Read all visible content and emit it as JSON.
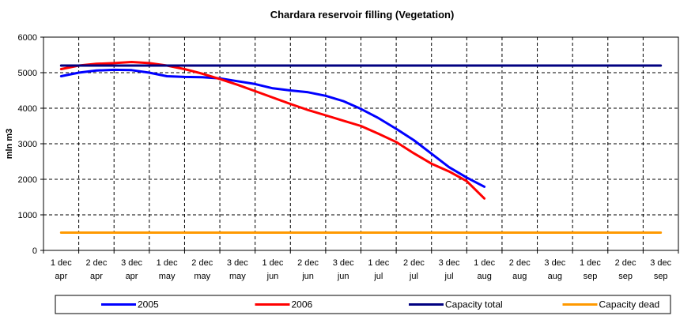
{
  "chart_data": {
    "type": "line",
    "title": "Chardara reservoir filling  (Vegetation)",
    "xlabel": "",
    "ylabel": "mln m3",
    "ylim": [
      0,
      6000
    ],
    "yticks": [
      0,
      1000,
      2000,
      3000,
      4000,
      5000,
      6000
    ],
    "categories": [
      [
        "1 dec",
        "apr"
      ],
      [
        "2 dec",
        "apr"
      ],
      [
        "3 dec",
        "apr"
      ],
      [
        "1 dec",
        "may"
      ],
      [
        "2 dec",
        "may"
      ],
      [
        "3 dec",
        "may"
      ],
      [
        "1 dec",
        "jun"
      ],
      [
        "2 dec",
        "jun"
      ],
      [
        "3 dec",
        "jun"
      ],
      [
        "1 dec",
        "jul"
      ],
      [
        "2 dec",
        "jul"
      ],
      [
        "3 dec",
        "jul"
      ],
      [
        "1 dec",
        "aug"
      ],
      [
        "2 dec",
        "aug"
      ],
      [
        "3 dec",
        "aug"
      ],
      [
        "1 dec",
        "sep"
      ],
      [
        "2 dec",
        "sep"
      ],
      [
        "3 dec",
        "sep"
      ]
    ],
    "grid": true,
    "legend_position": "bottom",
    "series": [
      {
        "name": "2005",
        "color": "#0000ff",
        "points": [
          [
            0,
            4900
          ],
          [
            0.5,
            5000
          ],
          [
            1,
            5060
          ],
          [
            1.5,
            5080
          ],
          [
            2,
            5070
          ],
          [
            2.5,
            5000
          ],
          [
            3,
            4900
          ],
          [
            3.5,
            4880
          ],
          [
            4,
            4870
          ],
          [
            4.5,
            4840
          ],
          [
            5,
            4760
          ],
          [
            5.5,
            4680
          ],
          [
            6,
            4560
          ],
          [
            6.5,
            4500
          ],
          [
            7,
            4450
          ],
          [
            7.5,
            4350
          ],
          [
            8,
            4200
          ],
          [
            8.5,
            3980
          ],
          [
            9,
            3720
          ],
          [
            9.5,
            3420
          ],
          [
            10,
            3100
          ],
          [
            10.5,
            2720
          ],
          [
            11,
            2340
          ],
          [
            11.5,
            2050
          ],
          [
            12,
            1790
          ]
        ]
      },
      {
        "name": "2006",
        "color": "#ff0000",
        "points": [
          [
            0,
            5100
          ],
          [
            0.5,
            5200
          ],
          [
            1,
            5250
          ],
          [
            1.5,
            5270
          ],
          [
            2,
            5300
          ],
          [
            2.5,
            5270
          ],
          [
            3,
            5200
          ],
          [
            3.5,
            5100
          ],
          [
            4,
            4970
          ],
          [
            4.5,
            4820
          ],
          [
            5,
            4660
          ],
          [
            5.5,
            4480
          ],
          [
            6,
            4300
          ],
          [
            6.5,
            4120
          ],
          [
            7,
            3950
          ],
          [
            7.5,
            3800
          ],
          [
            8,
            3650
          ],
          [
            8.5,
            3500
          ],
          [
            9,
            3280
          ],
          [
            9.5,
            3050
          ],
          [
            10,
            2730
          ],
          [
            10.5,
            2440
          ],
          [
            11,
            2220
          ],
          [
            11.5,
            1950
          ],
          [
            12,
            1460
          ]
        ]
      },
      {
        "name": "Capacity total",
        "color": "#000080",
        "points": [
          [
            0,
            5200
          ],
          [
            17,
            5200
          ]
        ]
      },
      {
        "name": "Capacity dead",
        "color": "#ff9900",
        "points": [
          [
            0,
            500
          ],
          [
            17,
            500
          ]
        ]
      }
    ]
  }
}
